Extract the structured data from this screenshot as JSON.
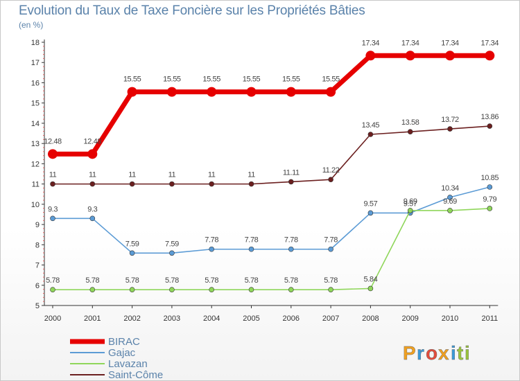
{
  "chart_data": {
    "type": "line",
    "title": "Evolution du Taux de Taxe Foncière sur les Propriétés Bâties",
    "unit": "(en %)",
    "x": [
      "2000",
      "2001",
      "2002",
      "2003",
      "2004",
      "2005",
      "2006",
      "2007",
      "2008",
      "2009",
      "2010",
      "2011"
    ],
    "ylim": [
      5,
      18
    ],
    "yticks": [
      5,
      6,
      7,
      8,
      9,
      10,
      11,
      12,
      13,
      14,
      15,
      16,
      17,
      18
    ],
    "grid": false,
    "legend_placement": "bottom-left",
    "series": [
      {
        "name": "BIRAC",
        "color": "#e60000",
        "values": [
          12.48,
          12.48,
          15.55,
          15.55,
          15.55,
          15.55,
          15.55,
          15.55,
          17.34,
          17.34,
          17.34,
          17.34
        ],
        "labels": [
          "12.48",
          "12.48",
          "15.55",
          "15.55",
          "15.55",
          "15.55",
          "15.55",
          "15.55",
          "17.34",
          "17.34",
          "17.34",
          "17.34"
        ]
      },
      {
        "name": "Gajac",
        "color": "#5b9bd5",
        "values": [
          9.3,
          9.3,
          7.59,
          7.59,
          7.78,
          7.78,
          7.78,
          7.78,
          9.57,
          9.57,
          10.34,
          10.85
        ],
        "labels": [
          "9.3",
          "9.3",
          "7.59",
          "7.59",
          "7.78",
          "7.78",
          "7.78",
          "7.78",
          "9.57",
          "9.57",
          "10.34",
          "10.85"
        ]
      },
      {
        "name": "Lavazan",
        "color": "#8fd65a",
        "values": [
          5.78,
          5.78,
          5.78,
          5.78,
          5.78,
          5.78,
          5.78,
          5.78,
          5.84,
          9.69,
          9.69,
          9.79
        ],
        "labels": [
          "5.78",
          "5.78",
          "5.78",
          "5.78",
          "5.78",
          "5.78",
          "5.78",
          "5.78",
          "5.84",
          "9.69",
          "9.69",
          "9.79"
        ]
      },
      {
        "name": "Saint-Côme",
        "color": "#6b1f1f",
        "values": [
          11,
          11,
          11,
          11,
          11,
          11,
          11.11,
          11.22,
          13.45,
          13.58,
          13.72,
          13.86
        ],
        "labels": [
          "11",
          "11",
          "11",
          "11",
          "11",
          "11",
          "11.11",
          "11.22",
          "13.45",
          "13.58",
          "13.72",
          "13.86"
        ]
      }
    ]
  },
  "logo": {
    "letters": [
      "P",
      "r",
      "o",
      "x",
      "i",
      "t",
      "i"
    ],
    "colors": [
      "#f0a020",
      "#3a9ad9",
      "#e24c3c",
      "#f0a020",
      "#3a9ad9",
      "#9ac43c",
      "#9ac43c"
    ]
  }
}
